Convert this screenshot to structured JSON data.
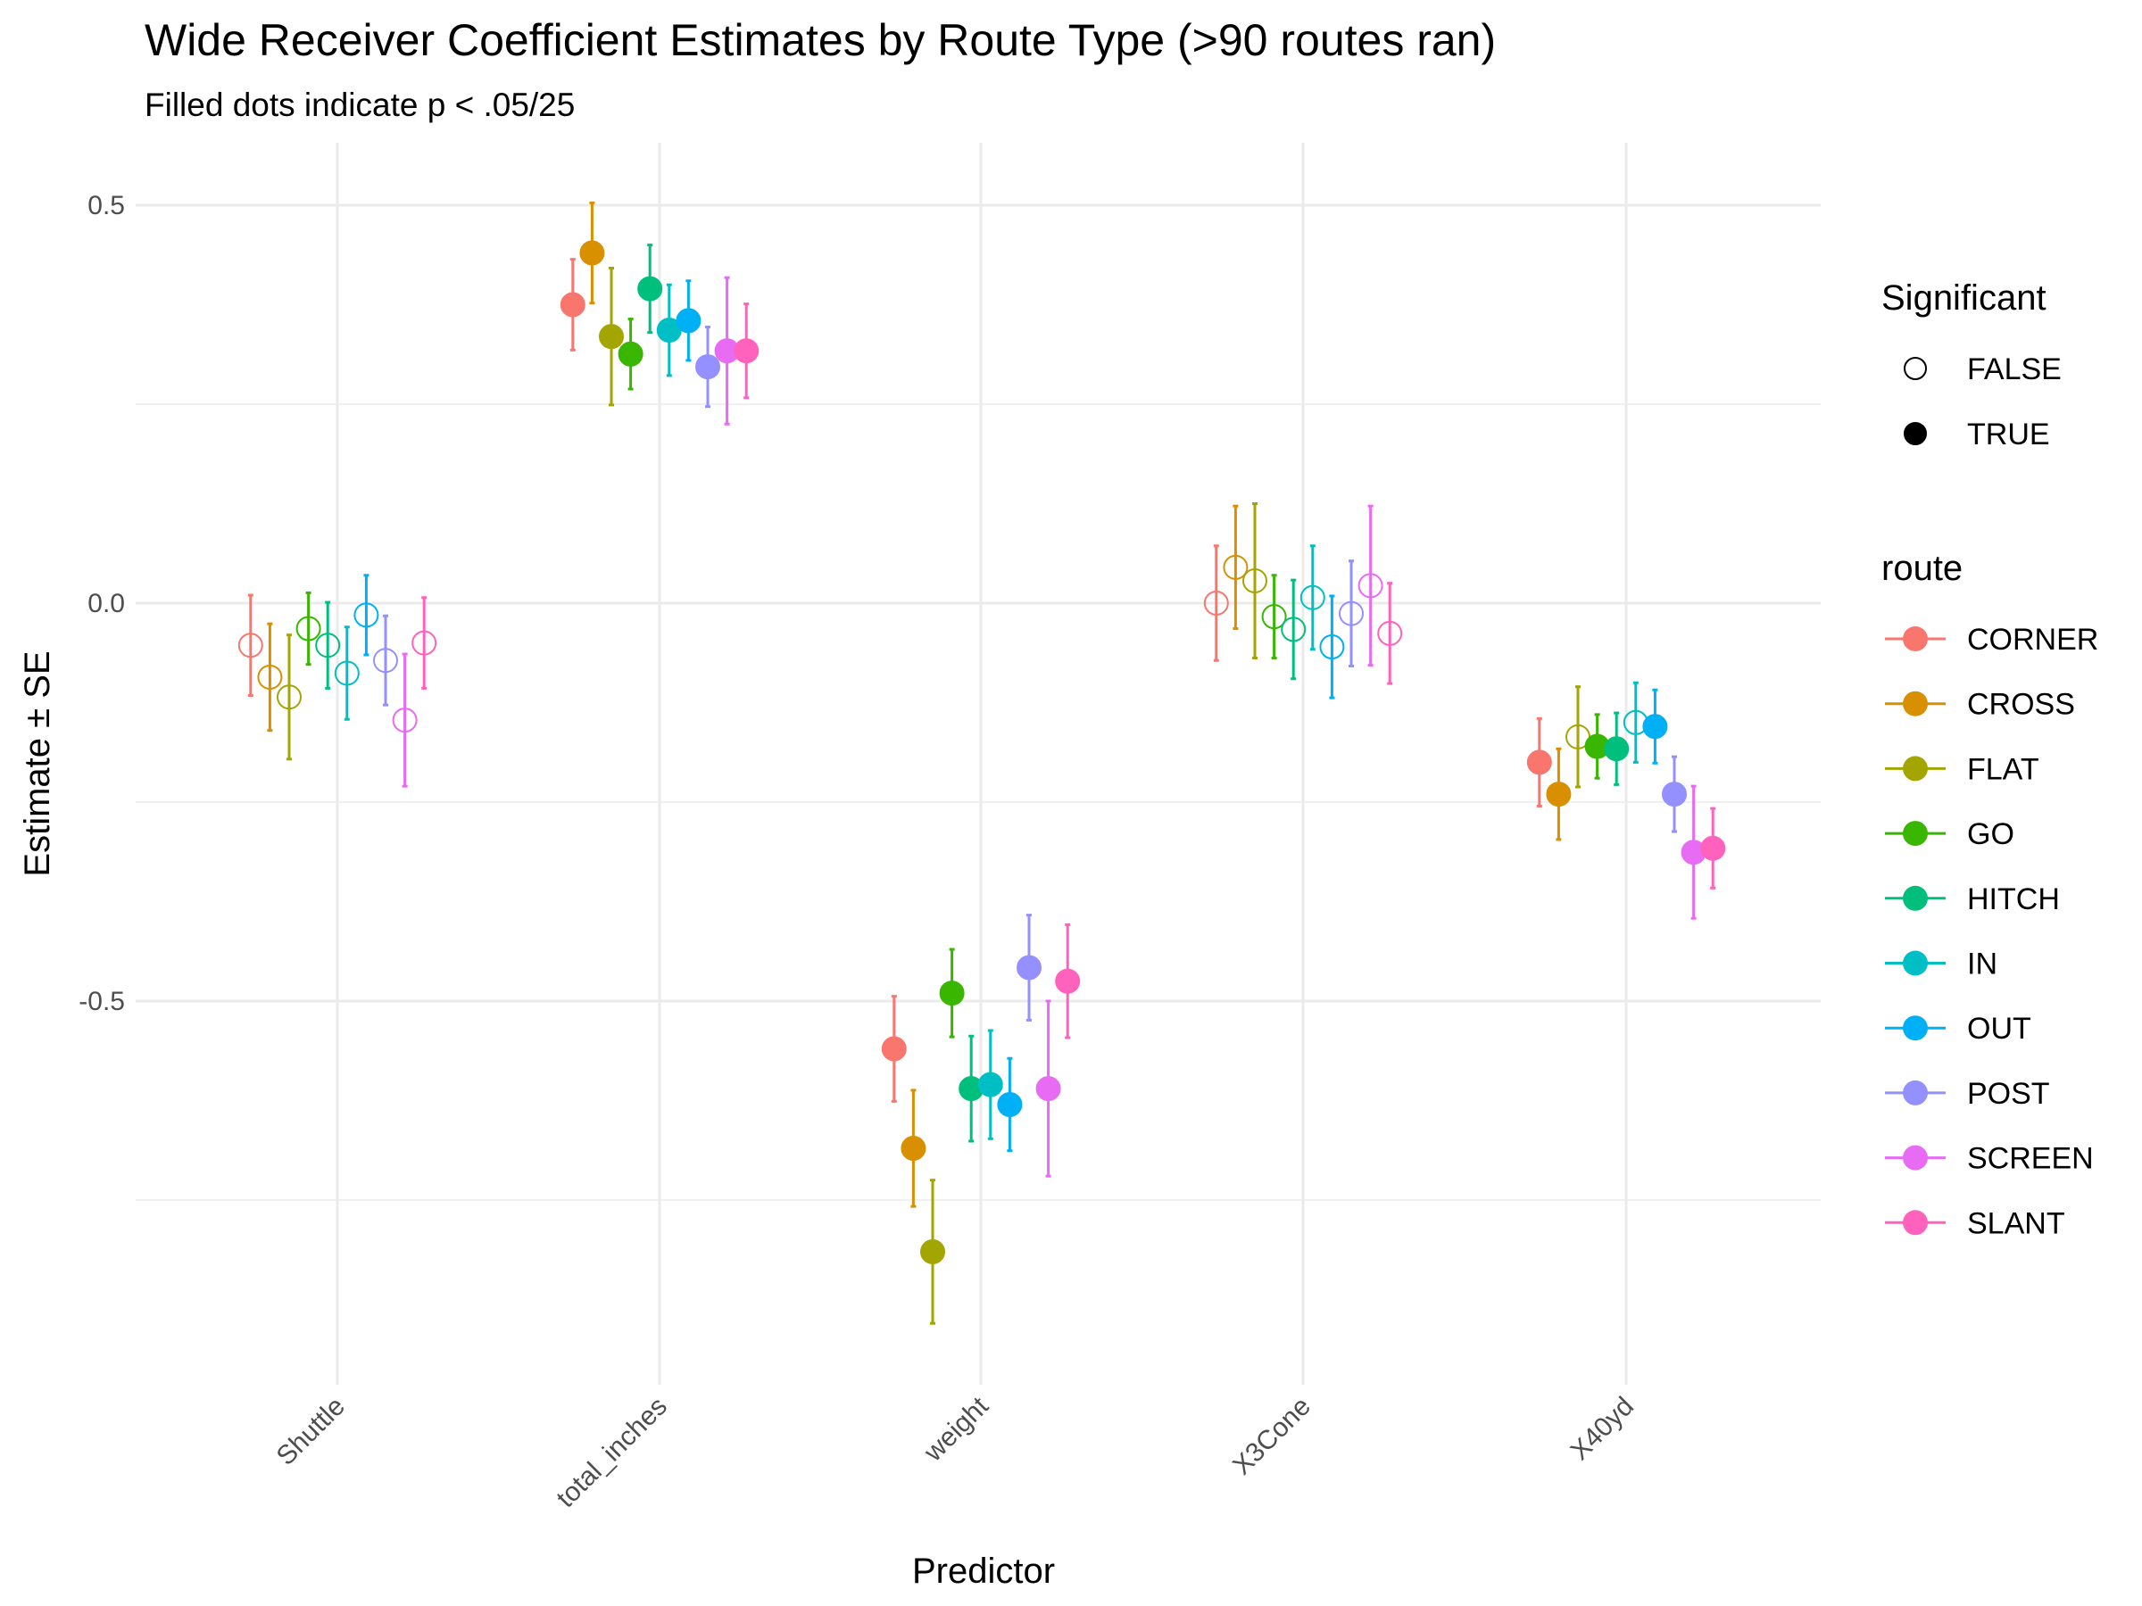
{
  "chart_data": {
    "type": "scatter",
    "title": "Wide Receiver Coefficient Estimates by Route Type (>90 routes ran)",
    "subtitle": "Filled dots indicate p < .05/25",
    "xlabel": "Predictor",
    "ylabel": "Estimate ± SE",
    "categories": [
      "Shuttle",
      "total_inches",
      "weight",
      "X3Cone",
      "X40yd"
    ],
    "yticks": [
      "0.5",
      "0.0",
      "-0.5"
    ],
    "ytick_values": [
      0.5,
      0.0,
      -0.5
    ],
    "ylim": [
      -0.98,
      0.58
    ],
    "grid": true,
    "legend_position": "right",
    "legend_shape": {
      "title": "Significant",
      "items": [
        {
          "label": "FALSE",
          "filled": false
        },
        {
          "label": "TRUE",
          "filled": true
        }
      ]
    },
    "legend_color": {
      "title": "route"
    },
    "series": [
      {
        "name": "CORNER",
        "color": "#F8766D",
        "estimate": [
          -0.053,
          0.375,
          -0.56,
          0.0,
          -0.2
        ],
        "se": [
          0.063,
          0.057,
          0.066,
          0.072,
          0.055
        ],
        "significant": [
          false,
          true,
          true,
          false,
          true
        ]
      },
      {
        "name": "CROSS",
        "color": "#D89000",
        "estimate": [
          -0.093,
          0.44,
          -0.685,
          0.045,
          -0.24
        ],
        "se": [
          0.067,
          0.063,
          0.073,
          0.077,
          0.057
        ],
        "significant": [
          false,
          true,
          true,
          false,
          true
        ]
      },
      {
        "name": "FLAT",
        "color": "#A3A500",
        "estimate": [
          -0.118,
          0.335,
          -0.815,
          0.028,
          -0.168
        ],
        "se": [
          0.078,
          0.086,
          0.09,
          0.097,
          0.063
        ],
        "significant": [
          false,
          true,
          true,
          false,
          false
        ]
      },
      {
        "name": "GO",
        "color": "#39B600",
        "estimate": [
          -0.032,
          0.313,
          -0.49,
          -0.017,
          -0.18
        ],
        "se": [
          0.045,
          0.044,
          0.055,
          0.052,
          0.04
        ],
        "significant": [
          false,
          true,
          true,
          false,
          true
        ]
      },
      {
        "name": "HITCH",
        "color": "#00BF7D",
        "estimate": [
          -0.053,
          0.395,
          -0.61,
          -0.033,
          -0.183
        ],
        "se": [
          0.054,
          0.055,
          0.066,
          0.062,
          0.045
        ],
        "significant": [
          false,
          true,
          true,
          false,
          true
        ]
      },
      {
        "name": "IN",
        "color": "#00BFC4",
        "estimate": [
          -0.088,
          0.343,
          -0.605,
          0.007,
          -0.15
        ],
        "se": [
          0.058,
          0.057,
          0.068,
          0.065,
          0.05
        ],
        "significant": [
          false,
          true,
          true,
          false,
          false
        ]
      },
      {
        "name": "OUT",
        "color": "#00B0F6",
        "estimate": [
          -0.015,
          0.355,
          -0.63,
          -0.055,
          -0.155
        ],
        "se": [
          0.05,
          0.05,
          0.058,
          0.064,
          0.046
        ],
        "significant": [
          false,
          true,
          true,
          false,
          true
        ]
      },
      {
        "name": "POST",
        "color": "#9590FF",
        "estimate": [
          -0.072,
          0.297,
          -0.458,
          -0.013,
          -0.24
        ],
        "se": [
          0.056,
          0.05,
          0.066,
          0.066,
          0.047
        ],
        "significant": [
          false,
          true,
          true,
          false,
          true
        ]
      },
      {
        "name": "SCREEN",
        "color": "#E76BF3",
        "estimate": [
          -0.147,
          0.317,
          -0.61,
          0.022,
          -0.313
        ],
        "se": [
          0.083,
          0.092,
          0.11,
          0.1,
          0.083
        ],
        "significant": [
          false,
          true,
          true,
          false,
          true
        ]
      },
      {
        "name": "SLANT",
        "color": "#FF62BC",
        "estimate": [
          -0.05,
          0.317,
          -0.475,
          -0.038,
          -0.308
        ],
        "se": [
          0.057,
          0.059,
          0.071,
          0.063,
          0.05
        ],
        "significant": [
          false,
          true,
          true,
          false,
          true
        ]
      }
    ]
  }
}
